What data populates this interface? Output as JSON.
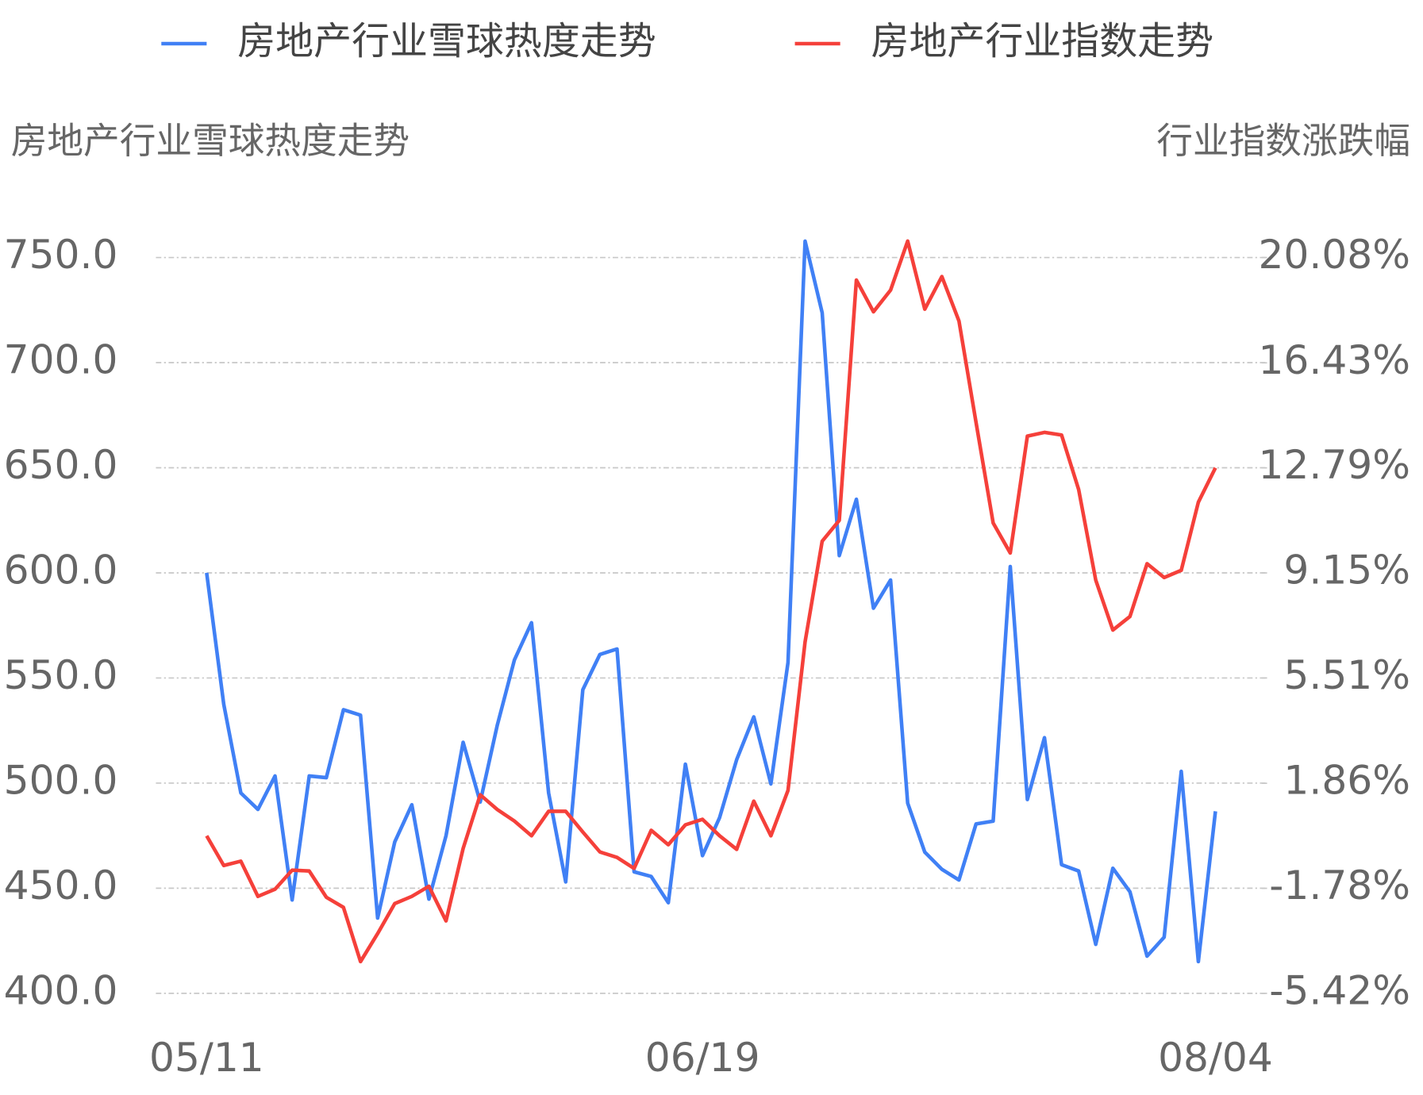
{
  "chart_data": {
    "type": "line",
    "legend": "top",
    "grid": true,
    "y_label": "房地产行业雪球热度走势",
    "y2_label": "行业指数涨跌幅",
    "categories": [
      "05/11",
      null,
      null,
      null,
      null,
      null,
      null,
      null,
      null,
      null,
      null,
      null,
      null,
      null,
      null,
      null,
      null,
      null,
      null,
      null,
      null,
      null,
      null,
      null,
      null,
      null,
      null,
      null,
      null,
      "06/19",
      null,
      null,
      null,
      null,
      null,
      null,
      null,
      null,
      null,
      null,
      null,
      null,
      null,
      null,
      null,
      null,
      null,
      null,
      null,
      null,
      null,
      null,
      null,
      null,
      null,
      null,
      null,
      null,
      null,
      "08/04"
    ],
    "ylim": [
      400,
      750
    ],
    "yticks": [
      {
        "value": 400,
        "label": "400.0"
      },
      {
        "value": 450,
        "label": "450.0"
      },
      {
        "value": 500,
        "label": "500.0"
      },
      {
        "value": 550,
        "label": "550.0"
      },
      {
        "value": 600,
        "label": "600.0"
      },
      {
        "value": 650,
        "label": "650.0"
      },
      {
        "value": 700,
        "label": "700.0"
      },
      {
        "value": 750,
        "label": "750.0"
      }
    ],
    "y2lim": [
      -5.42,
      20.08
    ],
    "y2ticks": [
      {
        "value": -5.42,
        "label": "-5.42%"
      },
      {
        "value": -1.78,
        "label": "-1.78%"
      },
      {
        "value": 1.86,
        "label": "1.86%"
      },
      {
        "value": 5.51,
        "label": "5.51%"
      },
      {
        "value": 9.15,
        "label": "9.15%"
      },
      {
        "value": 12.79,
        "label": "12.79%"
      },
      {
        "value": 16.43,
        "label": "16.43%"
      },
      {
        "value": 20.08,
        "label": "20.08%"
      }
    ],
    "series": [
      {
        "name": "房地产行业雪球热度走势",
        "color": "#4080f5",
        "values": [
          600,
          537.5,
          495.3,
          487.5,
          503.4,
          444.4,
          503.4,
          502.6,
          534.9,
          532.3,
          435.8,
          472,
          489.7,
          444.8,
          475,
          519.4,
          491,
          527.6,
          558.6,
          576.3,
          495.3,
          453,
          544.4,
          561.2,
          563.8,
          457.8,
          455.6,
          443.1,
          509,
          465.5,
          483.6,
          511.2,
          531.5,
          499.6,
          557.3,
          757.8,
          723.7,
          608.2,
          635,
          583.2,
          596.6,
          490.5,
          467.2,
          459,
          453.9,
          480.6,
          481.9,
          603,
          492.2,
          521.6,
          461.2,
          458.2,
          423.3,
          459.5,
          448.3,
          417.7,
          426.7,
          505.6,
          415.1,
          486.6
        ]
      },
      {
        "name": "房地产行业指数走势",
        "color": "#f5403a",
        "axis": "y2",
        "values": [
          0.04,
          -0.99,
          -0.84,
          -2.06,
          -1.81,
          -1.15,
          -1.18,
          -2.09,
          -2.44,
          -4.32,
          -3.35,
          -2.31,
          -2.06,
          -1.71,
          -2.91,
          -0.4,
          1.46,
          0.95,
          0.55,
          0.04,
          0.89,
          0.89,
          0.17,
          -0.52,
          -0.71,
          -1.09,
          0.23,
          -0.27,
          0.42,
          0.61,
          0.04,
          -0.43,
          1.24,
          0.04,
          1.61,
          6.76,
          10.25,
          10.97,
          19.3,
          18.2,
          18.95,
          20.65,
          18.29,
          19.42,
          17.88,
          14.36,
          10.88,
          9.84,
          13.89,
          14.02,
          13.93,
          12.04,
          8.9,
          7.17,
          7.64,
          9.47,
          8.99,
          9.24,
          11.6,
          12.79
        ]
      }
    ]
  }
}
